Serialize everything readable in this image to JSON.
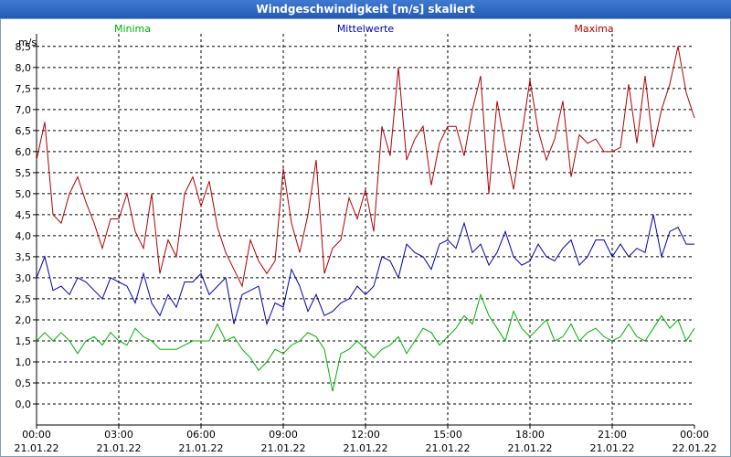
{
  "chart_data": {
    "type": "line",
    "title": "Windgeschwindigkeit [m/s] skaliert",
    "ylabel": "m/s",
    "ylim": [
      -0.5,
      8.8
    ],
    "yticks": [
      "0,0",
      "0,5",
      "1,0",
      "1,5",
      "2,0",
      "2,5",
      "3,0",
      "3,5",
      "4,0",
      "4,5",
      "5,0",
      "5,5",
      "6,0",
      "6,5",
      "7,0",
      "7,5",
      "8,0",
      "8,5"
    ],
    "xlim": [
      0,
      24
    ],
    "xticks": [
      {
        "time": "00:00",
        "date": "21.01.22"
      },
      {
        "time": "03:00",
        "date": "21.01.22"
      },
      {
        "time": "06:00",
        "date": "21.01.22"
      },
      {
        "time": "09:00",
        "date": "21.01.22"
      },
      {
        "time": "12:00",
        "date": "21.01.22"
      },
      {
        "time": "15:00",
        "date": "21.01.22"
      },
      {
        "time": "18:00",
        "date": "21.01.22"
      },
      {
        "time": "21:00",
        "date": "21.01.22"
      },
      {
        "time": "00:00",
        "date": "22.01.22"
      }
    ],
    "grid": true,
    "series": [
      {
        "name": "Minima",
        "color": "#00b000",
        "x": [
          0,
          0.3,
          0.6,
          0.9,
          1.2,
          1.5,
          1.8,
          2.1,
          2.4,
          2.7,
          3.0,
          3.3,
          3.6,
          3.9,
          4.2,
          4.5,
          4.8,
          5.1,
          5.4,
          5.7,
          6.0,
          6.3,
          6.6,
          6.9,
          7.2,
          7.5,
          7.8,
          8.1,
          8.4,
          8.7,
          9.0,
          9.3,
          9.6,
          9.9,
          10.2,
          10.5,
          10.8,
          11.1,
          11.4,
          11.7,
          12.0,
          12.3,
          12.6,
          12.9,
          13.2,
          13.5,
          13.8,
          14.1,
          14.4,
          14.7,
          15.0,
          15.3,
          15.6,
          15.9,
          16.2,
          16.5,
          16.8,
          17.1,
          17.4,
          17.7,
          18.0,
          18.3,
          18.6,
          18.9,
          19.2,
          19.5,
          19.8,
          20.1,
          20.4,
          20.7,
          21.0,
          21.3,
          21.6,
          21.9,
          22.2,
          22.5,
          22.8,
          23.1,
          23.4,
          23.7,
          24.0
        ],
        "values": [
          1.5,
          1.7,
          1.5,
          1.7,
          1.5,
          1.2,
          1.5,
          1.6,
          1.4,
          1.7,
          1.5,
          1.4,
          1.8,
          1.6,
          1.5,
          1.3,
          1.3,
          1.3,
          1.4,
          1.5,
          1.5,
          1.5,
          1.9,
          1.5,
          1.6,
          1.3,
          1.1,
          0.8,
          1.0,
          1.3,
          1.2,
          1.4,
          1.5,
          1.7,
          1.6,
          1.3,
          0.3,
          1.2,
          1.3,
          1.5,
          1.3,
          1.1,
          1.3,
          1.4,
          1.6,
          1.2,
          1.5,
          1.8,
          1.7,
          1.4,
          1.6,
          1.8,
          2.1,
          1.9,
          2.6,
          2.1,
          1.8,
          1.5,
          2.2,
          1.8,
          1.6,
          1.8,
          2.0,
          1.5,
          1.6,
          1.9,
          1.5,
          1.7,
          1.8,
          1.6,
          1.5,
          1.6,
          1.9,
          1.6,
          1.5,
          1.8,
          2.1,
          1.8,
          2.0,
          1.5,
          1.8
        ]
      },
      {
        "name": "Mittelwerte",
        "color": "#0000b0",
        "x": [
          0,
          0.3,
          0.6,
          0.9,
          1.2,
          1.5,
          1.8,
          2.1,
          2.4,
          2.7,
          3.0,
          3.3,
          3.6,
          3.9,
          4.2,
          4.5,
          4.8,
          5.1,
          5.4,
          5.7,
          6.0,
          6.3,
          6.6,
          6.9,
          7.2,
          7.5,
          7.8,
          8.1,
          8.4,
          8.7,
          9.0,
          9.3,
          9.6,
          9.9,
          10.2,
          10.5,
          10.8,
          11.1,
          11.4,
          11.7,
          12.0,
          12.3,
          12.6,
          12.9,
          13.2,
          13.5,
          13.8,
          14.1,
          14.4,
          14.7,
          15.0,
          15.3,
          15.6,
          15.9,
          16.2,
          16.5,
          16.8,
          17.1,
          17.4,
          17.7,
          18.0,
          18.3,
          18.6,
          18.9,
          19.2,
          19.5,
          19.8,
          20.1,
          20.4,
          20.7,
          21.0,
          21.3,
          21.6,
          21.9,
          22.2,
          22.5,
          22.8,
          23.1,
          23.4,
          23.7,
          24.0
        ],
        "values": [
          3.0,
          3.5,
          2.7,
          2.8,
          2.6,
          3.0,
          2.9,
          2.7,
          2.5,
          3.0,
          2.9,
          2.8,
          2.4,
          3.1,
          2.4,
          2.1,
          2.6,
          2.3,
          2.9,
          2.9,
          3.1,
          2.6,
          2.8,
          3.0,
          1.9,
          2.6,
          2.7,
          2.8,
          1.9,
          2.4,
          2.3,
          3.2,
          2.8,
          2.2,
          2.6,
          2.1,
          2.2,
          2.4,
          2.5,
          2.8,
          2.6,
          2.8,
          3.5,
          3.4,
          3.0,
          3.8,
          3.6,
          3.5,
          3.2,
          3.8,
          3.9,
          3.7,
          4.3,
          3.6,
          3.8,
          3.3,
          3.6,
          4.1,
          3.5,
          3.3,
          3.4,
          3.8,
          3.5,
          3.4,
          3.7,
          3.9,
          3.3,
          3.5,
          3.9,
          3.9,
          3.5,
          3.8,
          3.5,
          3.7,
          3.6,
          4.5,
          3.5,
          4.1,
          4.2,
          3.8,
          3.8
        ]
      },
      {
        "name": "Maxima",
        "color": "#b00000",
        "x": [
          0,
          0.3,
          0.6,
          0.9,
          1.2,
          1.5,
          1.8,
          2.1,
          2.4,
          2.7,
          3.0,
          3.3,
          3.6,
          3.9,
          4.2,
          4.5,
          4.8,
          5.1,
          5.4,
          5.7,
          6.0,
          6.3,
          6.6,
          6.9,
          7.2,
          7.5,
          7.8,
          8.1,
          8.4,
          8.7,
          9.0,
          9.3,
          9.6,
          9.9,
          10.2,
          10.5,
          10.8,
          11.1,
          11.4,
          11.7,
          12.0,
          12.3,
          12.6,
          12.9,
          13.2,
          13.5,
          13.8,
          14.1,
          14.4,
          14.7,
          15.0,
          15.3,
          15.6,
          15.9,
          16.2,
          16.5,
          16.8,
          17.1,
          17.4,
          17.7,
          18.0,
          18.3,
          18.6,
          18.9,
          19.2,
          19.5,
          19.8,
          20.1,
          20.4,
          20.7,
          21.0,
          21.3,
          21.6,
          21.9,
          22.2,
          22.5,
          22.8,
          23.1,
          23.4,
          23.7,
          24.0
        ],
        "values": [
          5.8,
          6.7,
          4.5,
          4.3,
          5.0,
          5.4,
          4.8,
          4.3,
          3.7,
          4.4,
          4.4,
          5.0,
          4.1,
          3.7,
          5.0,
          3.1,
          3.9,
          3.5,
          5.0,
          5.4,
          4.7,
          5.3,
          4.2,
          3.6,
          3.2,
          2.8,
          3.9,
          3.4,
          3.1,
          3.4,
          5.6,
          4.3,
          3.6,
          4.5,
          5.8,
          3.1,
          3.7,
          3.9,
          4.9,
          4.4,
          5.1,
          4.1,
          6.6,
          5.9,
          8.0,
          5.8,
          6.3,
          6.6,
          5.2,
          6.2,
          6.6,
          6.6,
          5.9,
          7.0,
          7.8,
          5.0,
          7.2,
          6.1,
          5.1,
          6.4,
          7.7,
          6.5,
          5.8,
          6.3,
          7.2,
          5.4,
          6.4,
          6.2,
          6.3,
          6.0,
          6.0,
          6.1,
          7.6,
          6.2,
          7.8,
          6.1,
          7.0,
          7.6,
          8.5,
          7.4,
          6.8
        ]
      }
    ]
  }
}
